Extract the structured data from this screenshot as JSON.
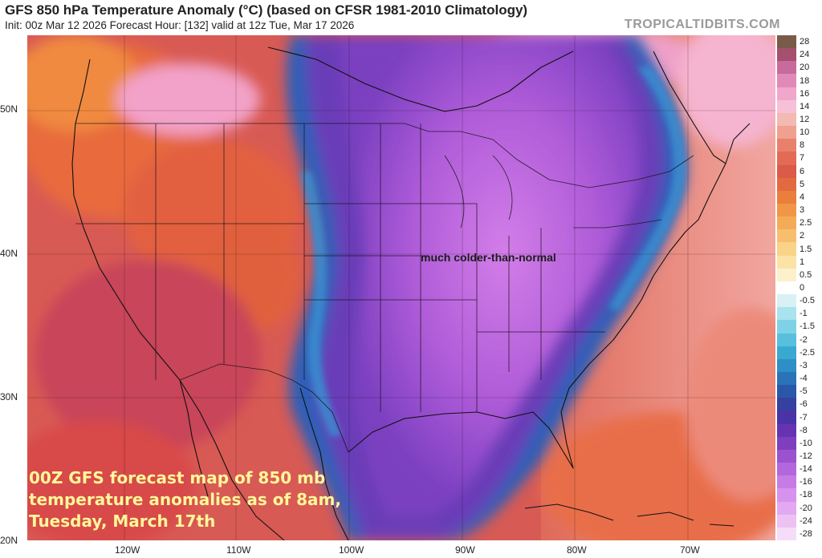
{
  "header": {
    "title": "GFS 850 hPa Temperature Anomaly (°C) (based on CFSR 1981-2010 Climatology)",
    "subtitle": "Init: 00z Mar 12 2026   Forecast Hour: [132]   valid at 12z Tue, Mar 17 2026",
    "watermark": "TROPICALTIDBITS.COM"
  },
  "map": {
    "lat_labels": [
      "50N",
      "40N",
      "30N",
      "20N"
    ],
    "lon_labels": [
      "120W",
      "110W",
      "100W",
      "90W",
      "80W",
      "70W"
    ],
    "annotation": "much colder-than-normal",
    "caption_lines": [
      "00Z GFS forecast map of 850 mb",
      "temperature anomalies as of 8am,",
      "Tuesday, March 17th"
    ]
  },
  "colorbar": {
    "labels": [
      "28",
      "24",
      "20",
      "18",
      "16",
      "14",
      "12",
      "10",
      "8",
      "7",
      "6",
      "5",
      "4",
      "3",
      "2.5",
      "2",
      "1.5",
      "1",
      "0.5",
      "0",
      "-0.5",
      "-1",
      "-1.5",
      "-2",
      "-2.5",
      "-3",
      "-4",
      "-5",
      "-6",
      "-7",
      "-8",
      "-10",
      "-12",
      "-14",
      "-16",
      "-18",
      "-20",
      "-24",
      "-28"
    ],
    "colors": [
      "#7a5a48",
      "#a4506e",
      "#c86a9c",
      "#e08ab8",
      "#f1a7cc",
      "#f6c1d8",
      "#f3b9b3",
      "#f0a08f",
      "#e9806d",
      "#e36a55",
      "#db5a48",
      "#e26a40",
      "#ea7e3c",
      "#f09646",
      "#f4ab57",
      "#f7bf6d",
      "#f9d387",
      "#fbe3a6",
      "#fdf1cc",
      "#ffffff",
      "#d8f1f5",
      "#a9e3ee",
      "#7fd2e6",
      "#58c0dd",
      "#3aa9d2",
      "#2d8fc6",
      "#2a73b8",
      "#2a58a9",
      "#3640a0",
      "#4a33a6",
      "#6634b2",
      "#7e3fbf",
      "#9a52cf",
      "#b267dc",
      "#c77ce5",
      "#d692ec",
      "#e2a9f0",
      "#ecc2f3",
      "#f6dcf8"
    ]
  }
}
